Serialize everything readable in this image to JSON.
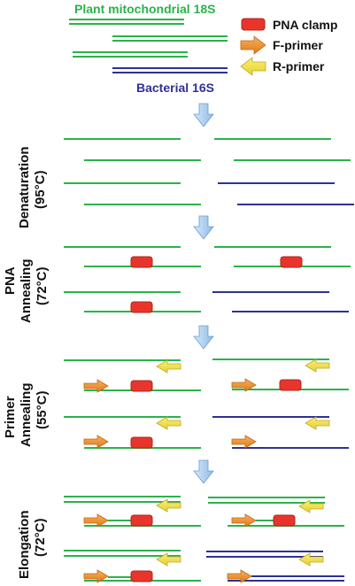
{
  "labels": {
    "plant": "Plant mitochondrial 18S",
    "bacterial": "Bacterial 16S"
  },
  "legend": {
    "pna": "PNA clamp",
    "fprimer": "F-primer",
    "rprimer": "R-primer"
  },
  "stages": {
    "s1_l1": "Denaturation",
    "s1_l2": "(95°C)",
    "s2_l1": "PNA",
    "s2_l2": "Annealing",
    "s2_l3": "(72°C)",
    "s3_l1": "Primer",
    "s3_l2": "Annealing",
    "s3_l3": "(55°C)",
    "s4_l1": "Elongation",
    "s4_l2": "(72°C)"
  },
  "colors": {
    "plant_strand": "#2ab34a",
    "bacterial_strand": "#2e3192",
    "pna_clamp": "#e8352b",
    "f_primer": "#f08a2c",
    "r_primer": "#f2e14a",
    "step_arrow": "#a9cdf0"
  }
}
